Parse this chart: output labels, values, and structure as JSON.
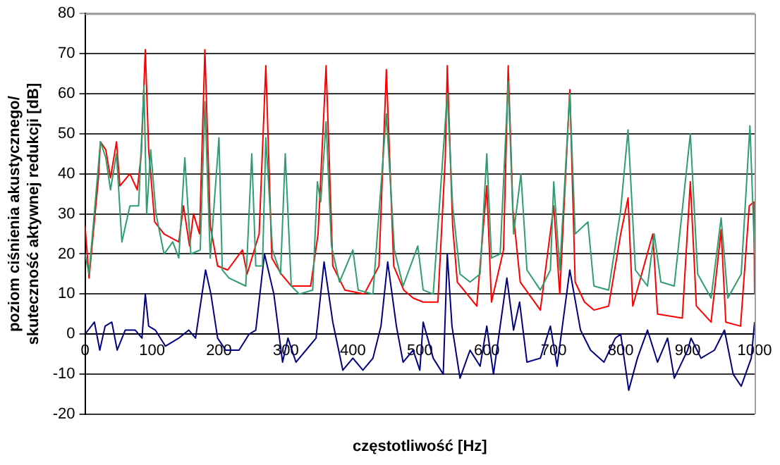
{
  "chart_data": {
    "type": "line",
    "xlabel": "częstotliwość [Hz]",
    "ylabel": "poziom ciśnienia akustycznego/\nskuteczność aktywnej redukcji [dB]",
    "xlim": [
      0,
      1000
    ],
    "xticks": [
      0,
      100,
      200,
      300,
      400,
      500,
      600,
      700,
      800,
      900,
      1000
    ],
    "ylim": [
      -20,
      80
    ],
    "yticks": [
      -20,
      -10,
      0,
      10,
      20,
      30,
      40,
      50,
      60,
      70,
      80
    ],
    "grid": "y",
    "legend": false,
    "marker": "none",
    "line_style": "solid",
    "series": [
      {
        "color": "#2e9e6e",
        "x": [
          0,
          6,
          23,
          31,
          38,
          47,
          55,
          67,
          80,
          88,
          92,
          98,
          106,
          118,
          131,
          140,
          149,
          158,
          172,
          179,
          187,
          200,
          205,
          215,
          240,
          249,
          255,
          265,
          270,
          280,
          292,
          299,
          308,
          320,
          340,
          347,
          352,
          360,
          368,
          380,
          400,
          408,
          430,
          450,
          462,
          475,
          497,
          505,
          520,
          541,
          549,
          560,
          575,
          590,
          600,
          607,
          620,
          632,
          640,
          651,
          660,
          680,
          695,
          700,
          709,
          724,
          732,
          751,
          760,
          782,
          800,
          811,
          822,
          840,
          850,
          860,
          880,
          904,
          915,
          935,
          950,
          960,
          980,
          993,
          1000
        ],
        "values": [
          20,
          15,
          48,
          44,
          36,
          45,
          23,
          32,
          32,
          62,
          30,
          46,
          30,
          20,
          23,
          19,
          44,
          20,
          21,
          58,
          19,
          49,
          16,
          14,
          12,
          45,
          17,
          17,
          49,
          21,
          15,
          45,
          12,
          10,
          11,
          38,
          33,
          53,
          22,
          13,
          21,
          11,
          10,
          55,
          21,
          12,
          22,
          11,
          10,
          60,
          32,
          15,
          13,
          15,
          45,
          19,
          20,
          63,
          25,
          40,
          16,
          11,
          16,
          38,
          16,
          60,
          25,
          28,
          12,
          11,
          31,
          51,
          16,
          12,
          25,
          13,
          12,
          50,
          15,
          9,
          29,
          9,
          15,
          52,
          20
        ]
      },
      {
        "color": "#ff0000",
        "x": [
          0,
          6,
          20,
          23,
          31,
          38,
          47,
          52,
          67,
          78,
          84,
          90,
          95,
          104,
          118,
          140,
          147,
          156,
          162,
          171,
          179,
          187,
          198,
          213,
          235,
          242,
          260,
          270,
          279,
          293,
          308,
          337,
          348,
          360,
          370,
          388,
          417,
          439,
          450,
          461,
          476,
          490,
          505,
          527,
          538,
          541,
          549,
          556,
          585,
          600,
          607,
          625,
          632,
          639,
          650,
          680,
          700,
          709,
          724,
          732,
          746,
          760,
          782,
          800,
          811,
          818,
          848,
          855,
          892,
          904,
          913,
          935,
          950,
          957,
          979,
          992,
          999,
          1000
        ],
        "values": [
          27,
          14,
          39,
          48,
          46,
          39,
          48,
          37,
          40,
          36,
          45,
          71,
          46,
          28,
          25,
          23,
          32,
          22,
          30,
          25,
          71,
          27,
          17,
          16,
          21,
          15,
          25,
          67,
          19,
          15,
          12,
          12,
          25,
          67,
          17,
          11,
          10,
          17,
          66,
          17,
          11,
          9,
          8,
          8,
          44,
          67,
          27,
          13,
          7,
          37,
          8,
          21,
          67,
          31,
          13,
          6,
          32,
          10,
          61,
          13,
          8,
          6,
          7,
          25,
          34,
          7,
          25,
          5,
          4,
          38,
          7,
          3,
          26,
          3,
          2,
          32,
          33,
          10
        ]
      },
      {
        "color": "#000080",
        "x": [
          0,
          14,
          22,
          30,
          40,
          48,
          60,
          75,
          85,
          90,
          95,
          105,
          120,
          140,
          155,
          165,
          180,
          188,
          198,
          210,
          230,
          245,
          255,
          268,
          282,
          295,
          303,
          315,
          330,
          345,
          357,
          370,
          385,
          400,
          415,
          430,
          442,
          452,
          465,
          475,
          490,
          500,
          505,
          520,
          535,
          541,
          548,
          560,
          575,
          590,
          600,
          610,
          630,
          640,
          649,
          660,
          680,
          695,
          705,
          724,
          740,
          755,
          775,
          792,
          800,
          812,
          825,
          840,
          855,
          870,
          880,
          900,
          905,
          920,
          940,
          955,
          968,
          980,
          995,
          1000
        ],
        "values": [
          0,
          3,
          -4,
          2,
          3,
          -4,
          1,
          1,
          -1,
          10,
          2,
          1,
          -3,
          -1,
          1,
          -1,
          16,
          10,
          -1,
          -4,
          -4,
          0,
          1,
          20,
          10,
          -7,
          -1,
          -7,
          -4,
          -1,
          18,
          3,
          -9,
          -6,
          -9,
          -6,
          2,
          18,
          2,
          -7,
          -4,
          -9,
          3,
          -6,
          -10,
          20,
          2,
          -11,
          -4,
          -8,
          2,
          -10,
          14,
          1,
          8,
          -7,
          -6,
          2,
          -8,
          16,
          1,
          -4,
          -7,
          -1,
          0,
          -14,
          -6,
          1,
          -7,
          -1,
          -11,
          -4,
          -1,
          -6,
          -4,
          1,
          -10,
          -13,
          -6,
          3
        ]
      }
    ]
  }
}
